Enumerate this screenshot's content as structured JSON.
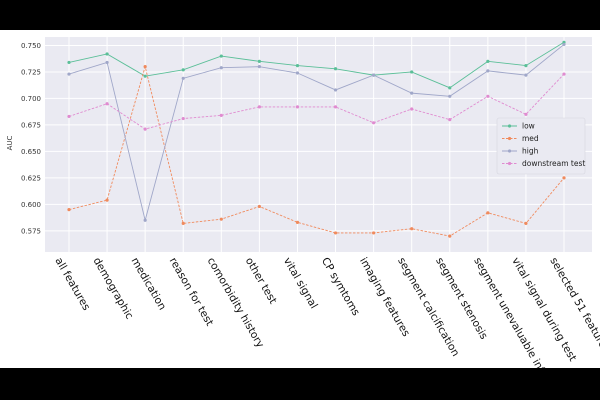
{
  "chart_data": {
    "type": "line",
    "title": "",
    "xlabel": "",
    "ylabel": "AUC",
    "ylim": [
      0.555,
      0.758
    ],
    "yticks": [
      0.575,
      0.6,
      0.625,
      0.65,
      0.675,
      0.7,
      0.725,
      0.75
    ],
    "ytick_labels": [
      "0.575",
      "0.600",
      "0.625",
      "0.650",
      "0.675",
      "0.700",
      "0.725",
      "0.750"
    ],
    "grid": true,
    "legend_position": "right",
    "categories": [
      "all features",
      "demographic",
      "medication",
      "reason for test",
      "comorbidity history",
      "other test",
      "vital signal",
      "CP symtoms",
      "imaging features",
      "segment calcification",
      "segment stenosis",
      "segment unevaluable info",
      "vital signal during test",
      "selected 51 features"
    ],
    "series": [
      {
        "name": "low",
        "color": "#5bbf98",
        "marker": "circle",
        "dash": "solid",
        "values": [
          0.734,
          0.742,
          0.721,
          0.727,
          0.74,
          0.735,
          0.731,
          0.728,
          0.722,
          0.725,
          0.71,
          0.735,
          0.731,
          0.753
        ]
      },
      {
        "name": "med",
        "color": "#f08a5d",
        "marker": "circle",
        "dash": "dashed",
        "values": [
          0.595,
          0.604,
          0.73,
          0.582,
          0.586,
          0.598,
          0.583,
          0.573,
          0.573,
          0.577,
          0.57,
          0.592,
          0.582,
          0.625
        ]
      },
      {
        "name": "high",
        "color": "#a0a7c9",
        "marker": "circle",
        "dash": "solid",
        "values": [
          0.723,
          0.734,
          0.585,
          0.719,
          0.729,
          0.73,
          0.724,
          0.708,
          0.722,
          0.705,
          0.702,
          0.726,
          0.722,
          0.751
        ]
      },
      {
        "name": "downstream test",
        "color": "#e08bd0",
        "marker": "circle",
        "dash": "dashed",
        "values": [
          0.683,
          0.695,
          0.671,
          0.681,
          0.684,
          0.692,
          0.692,
          0.692,
          0.677,
          0.69,
          0.68,
          0.702,
          0.685,
          0.723
        ]
      }
    ]
  }
}
